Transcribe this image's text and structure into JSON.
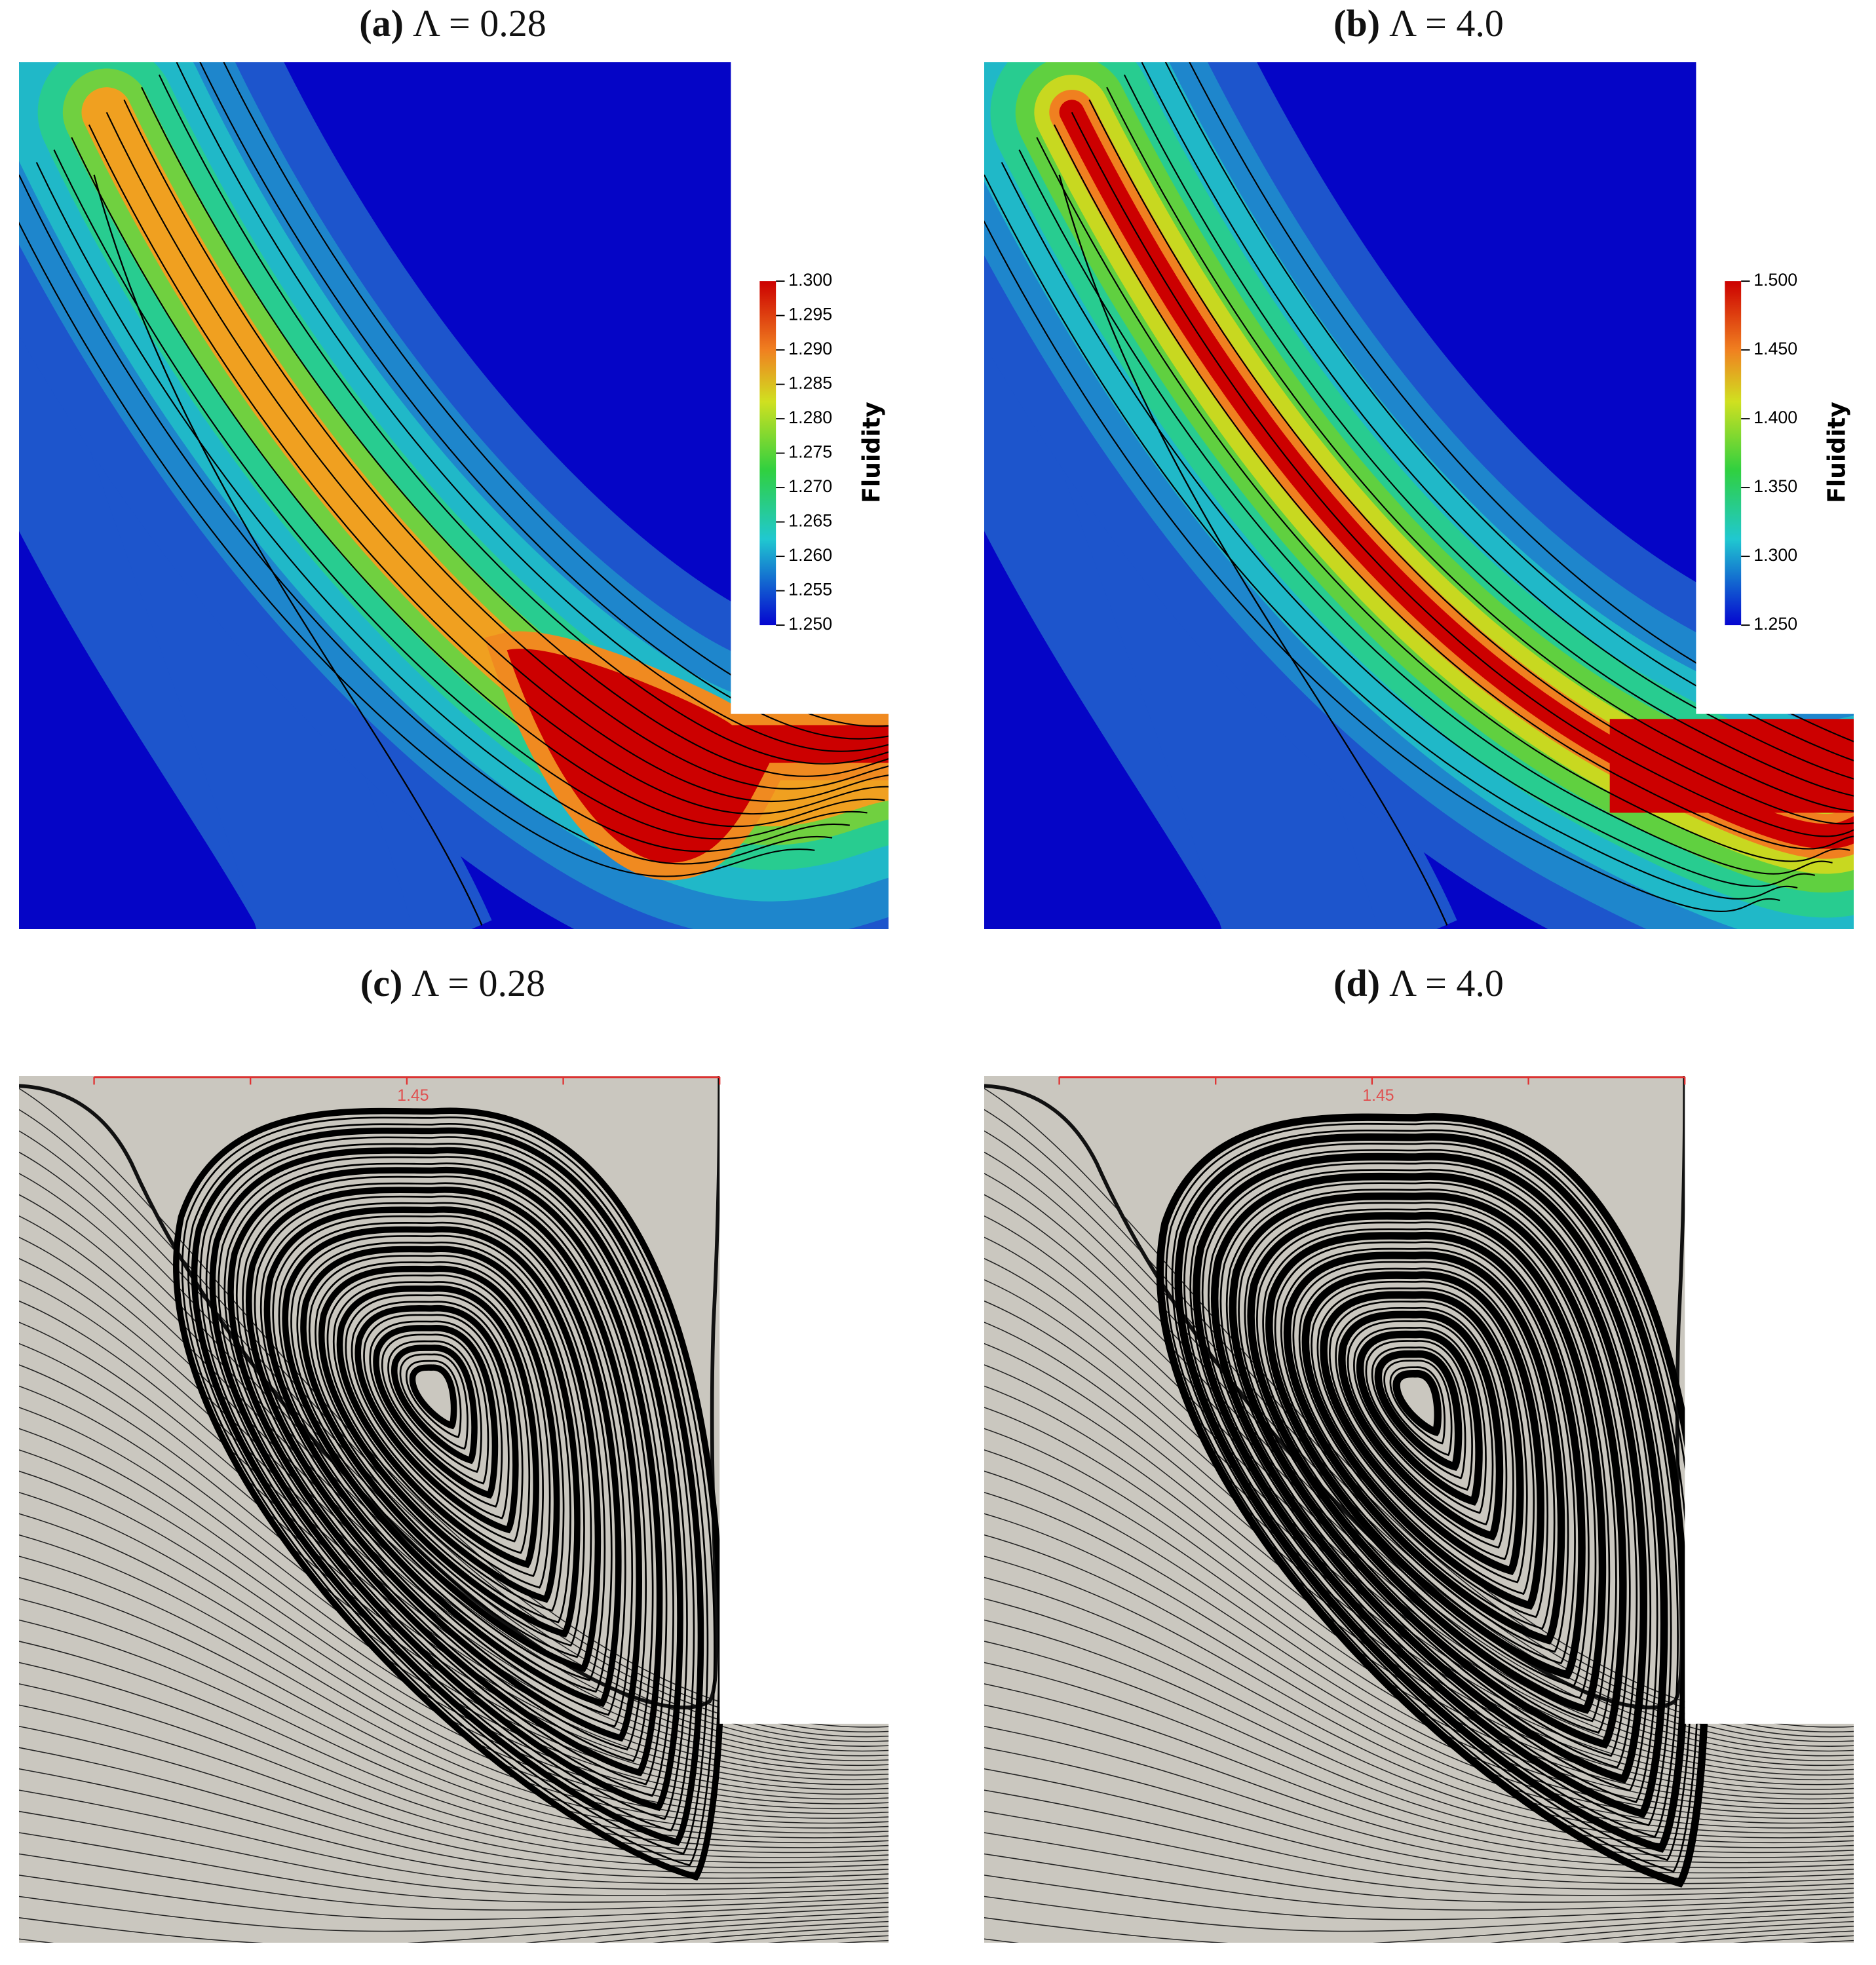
{
  "panels": [
    {
      "label": "(a)",
      "caption": "Λ = 0.28",
      "colorbar": {
        "title": "Fluidity",
        "ticks": [
          "1.300",
          "1.295",
          "1.290",
          "1.285",
          "1.280",
          "1.275",
          "1.270",
          "1.265",
          "1.260",
          "1.255",
          "1.250"
        ]
      }
    },
    {
      "label": "(b)",
      "caption": "Λ = 4.0",
      "colorbar": {
        "title": "Fluidity",
        "ticks": [
          "1.500",
          "1.450",
          "1.400",
          "1.350",
          "1.300",
          "1.250"
        ]
      }
    },
    {
      "label": "(c)",
      "caption": "Λ = 0.28",
      "ruler_label": "1.45"
    },
    {
      "label": "(d)",
      "caption": "Λ = 4.0",
      "ruler_label": "1.45"
    }
  ]
}
